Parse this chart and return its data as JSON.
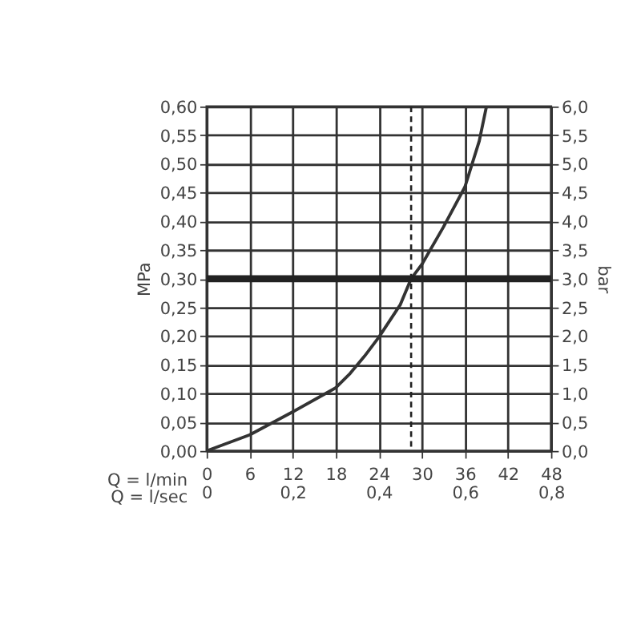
{
  "chart_data": {
    "type": "line",
    "xlabel": "Q = l/min",
    "x2label": "Q = l/sec",
    "ylabel": "MPa",
    "y2label": "bar",
    "x": [
      0,
      6,
      12,
      18,
      20,
      22,
      24,
      27,
      28.5,
      30,
      33,
      36,
      38,
      39
    ],
    "series": [
      {
        "color": "#333333",
        "values": [
          0,
          0.028,
          0.068,
          0.11,
          0.135,
          0.165,
          0.198,
          0.255,
          0.3,
          0.325,
          0.39,
          0.46,
          0.54,
          0.6
        ]
      }
    ],
    "xlim": [
      0,
      48
    ],
    "xticks": [
      0,
      6,
      12,
      18,
      24,
      30,
      36,
      42,
      48
    ],
    "x2lim": [
      0,
      0.8
    ],
    "x2ticks": [
      {
        "value": 0,
        "label": "0"
      },
      {
        "value": 0.2,
        "label": "0,2"
      },
      {
        "value": 0.4,
        "label": "0,4"
      },
      {
        "value": 0.6,
        "label": "0,6"
      },
      {
        "value": 0.8,
        "label": "0,8"
      }
    ],
    "ylim": [
      0,
      0.6
    ],
    "yticks": [
      {
        "value": 0,
        "label": "0,00"
      },
      {
        "value": 0.05,
        "label": "0,05"
      },
      {
        "value": 0.1,
        "label": "0,10"
      },
      {
        "value": 0.15,
        "label": "0,15"
      },
      {
        "value": 0.2,
        "label": "0,20"
      },
      {
        "value": 0.25,
        "label": "0,25"
      },
      {
        "value": 0.3,
        "label": "0,30"
      },
      {
        "value": 0.35,
        "label": "0,35"
      },
      {
        "value": 0.4,
        "label": "0,40"
      },
      {
        "value": 0.45,
        "label": "0,45"
      },
      {
        "value": 0.5,
        "label": "0,50"
      },
      {
        "value": 0.55,
        "label": "0,55"
      },
      {
        "value": 0.6,
        "label": "0,60"
      }
    ],
    "y2lim": [
      0,
      6
    ],
    "y2ticks": [
      {
        "value": 0,
        "label": "0,0"
      },
      {
        "value": 0.5,
        "label": "0,5"
      },
      {
        "value": 1,
        "label": "1,0"
      },
      {
        "value": 1.5,
        "label": "1,5"
      },
      {
        "value": 2,
        "label": "2,0"
      },
      {
        "value": 2.5,
        "label": "2,5"
      },
      {
        "value": 3,
        "label": "3,0"
      },
      {
        "value": 3.5,
        "label": "3,5"
      },
      {
        "value": 4,
        "label": "4,0"
      },
      {
        "value": 4.5,
        "label": "4,5"
      },
      {
        "value": 5,
        "label": "5,0"
      },
      {
        "value": 5.5,
        "label": "5,5"
      },
      {
        "value": 6,
        "label": "6,0"
      }
    ],
    "ref_lines": [
      {
        "axis": "y2",
        "value": 3.0,
        "color": "#222222",
        "line_style": "solid"
      },
      {
        "axis": "x2",
        "value": 0.475,
        "color": "#222222",
        "line_style": "dashed"
      }
    ],
    "grid": true,
    "line_style": "solid",
    "marker": "none"
  }
}
